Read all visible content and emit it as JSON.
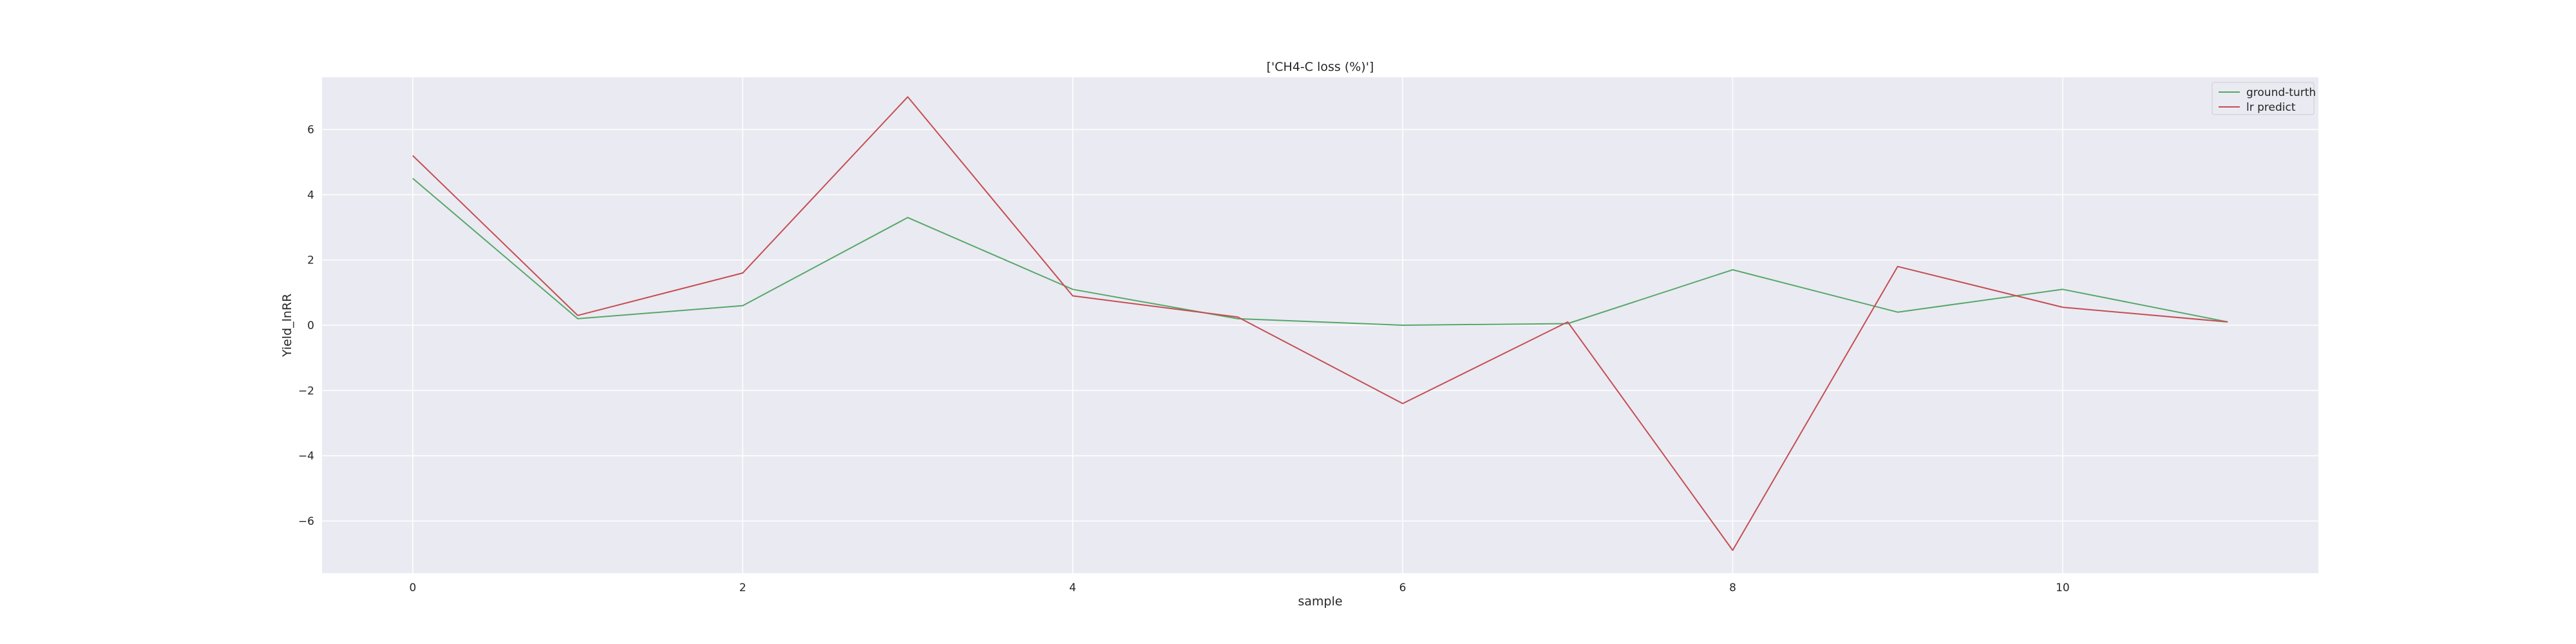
{
  "chart_data": {
    "type": "line",
    "title": "['CH4-C loss (%)']",
    "xlabel": "sample",
    "ylabel": "Yield_lnRR",
    "x": [
      0,
      1,
      2,
      3,
      4,
      5,
      6,
      7,
      8,
      9,
      10,
      11
    ],
    "xlim": [
      -0.55,
      11.55
    ],
    "ylim": [
      -7.6,
      7.6
    ],
    "x_ticks": [
      0,
      2,
      4,
      6,
      8,
      10
    ],
    "x_tick_labels": [
      "0",
      "2",
      "4",
      "6",
      "8",
      "10"
    ],
    "y_ticks": [
      -6,
      -4,
      -2,
      0,
      2,
      4,
      6
    ],
    "y_tick_labels": [
      "−6",
      "−4",
      "−2",
      "0",
      "2",
      "4",
      "6"
    ],
    "grid": true,
    "legend_position": "top-right",
    "background_color": "#eaeaf2",
    "series": [
      {
        "name": "ground-turth",
        "color": "#55a868",
        "values": [
          4.5,
          0.2,
          0.6,
          3.3,
          1.1,
          0.2,
          0.0,
          0.05,
          1.7,
          0.4,
          1.1,
          0.1
        ]
      },
      {
        "name": "lr predict",
        "color": "#c44e52",
        "values": [
          5.2,
          0.3,
          1.6,
          7.0,
          0.9,
          0.25,
          -2.4,
          0.1,
          -6.9,
          1.8,
          0.55,
          0.1
        ]
      }
    ]
  }
}
